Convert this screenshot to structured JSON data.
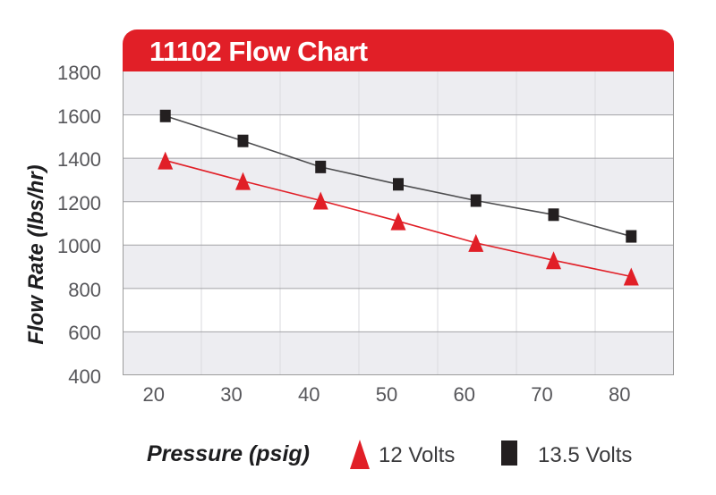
{
  "colors": {
    "banner_red": "#e11f27",
    "band_gray": "#ededf1",
    "band_white": "#ffffff",
    "grid_vertical": "#dadade",
    "grid_horizontal": "#a2a2a6",
    "plot_border": "#9b9b9b",
    "tick_text": "#56565a",
    "series_12v_red": "#e11f27",
    "series_13_5v_black": "#231f20"
  },
  "chart_data": {
    "type": "line",
    "title": "11102 Flow Chart",
    "xlabel": "Pressure (psig)",
    "ylabel": "Flow Rate (lbs/hr)",
    "xlim": [
      16,
      87
    ],
    "ylim": [
      400,
      1800
    ],
    "x_ticks": [
      20,
      30,
      40,
      50,
      60,
      70,
      80
    ],
    "y_ticks": [
      400,
      600,
      800,
      1000,
      1200,
      1400,
      1600,
      1800
    ],
    "x": [
      21.5,
      31.5,
      41.5,
      51.5,
      61.5,
      71.5,
      81.5
    ],
    "series": [
      {
        "name": "12 Volts",
        "marker": "triangle",
        "color": "#e11f27",
        "line_color": "#e11f27",
        "values": [
          1390,
          1295,
          1205,
          1110,
          1010,
          930,
          855
        ]
      },
      {
        "name": "13.5 Volts",
        "marker": "square",
        "color": "#231f20",
        "line_color": "#4d4d4f",
        "values": [
          1595,
          1480,
          1360,
          1280,
          1205,
          1140,
          1040
        ]
      }
    ],
    "grid": "horizontal-bands-with-column-gridlines",
    "legend_position": "bottom"
  }
}
